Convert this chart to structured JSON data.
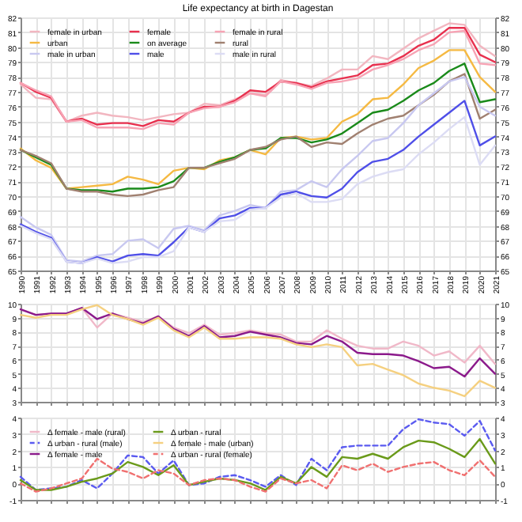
{
  "chart_data": [
    {
      "type": "line",
      "title": "Life expectancy at birth in Dagestan",
      "x": [
        1990,
        1991,
        1992,
        1993,
        1994,
        1995,
        1996,
        1997,
        1998,
        1999,
        2000,
        2001,
        2002,
        2003,
        2004,
        2005,
        2006,
        2007,
        2008,
        2009,
        2010,
        2011,
        2012,
        2013,
        2014,
        2015,
        2016,
        2017,
        2018,
        2019,
        2020,
        2021
      ],
      "xlim": [
        1990,
        2021
      ],
      "xticks": [
        1990,
        1991,
        1992,
        1993,
        1994,
        1995,
        1996,
        1997,
        1998,
        1999,
        2000,
        2001,
        2002,
        2003,
        2004,
        2005,
        2006,
        2007,
        2008,
        2009,
        2010,
        2011,
        2012,
        2013,
        2014,
        2015,
        2016,
        2017,
        2018,
        2019,
        2020,
        2021
      ],
      "ylim": [
        65,
        82
      ],
      "yticks": [
        65,
        66,
        67,
        68,
        69,
        70,
        71,
        72,
        73,
        74,
        75,
        76,
        77,
        78,
        79,
        80,
        81,
        82
      ],
      "y2lim": [
        65,
        82
      ],
      "y2ticks": [
        65,
        66,
        67,
        68,
        69,
        70,
        71,
        72,
        73,
        74,
        75,
        76,
        77,
        78,
        79,
        80,
        81,
        82
      ],
      "grid": true,
      "legend": "top left",
      "series": [
        {
          "name": "female in urban",
          "color": "#f2b6c0",
          "values": [
            77.5,
            76.6,
            76.5,
            75.0,
            75.4,
            75.6,
            75.4,
            75.3,
            75.1,
            75.3,
            75.5,
            75.6,
            76.2,
            76.1,
            76.5,
            76.9,
            76.8,
            77.8,
            77.6,
            77.4,
            77.9,
            78.5,
            78.5,
            79.4,
            79.2,
            79.9,
            80.6,
            81.1,
            81.6,
            81.5,
            80.1,
            79.4
          ]
        },
        {
          "name": "female",
          "color": "#e8304e",
          "values": [
            77.6,
            77.0,
            76.6,
            75.0,
            75.2,
            74.8,
            74.9,
            74.9,
            74.7,
            75.1,
            75.0,
            75.6,
            76.0,
            76.0,
            76.4,
            77.1,
            77.0,
            77.7,
            77.6,
            77.3,
            77.7,
            77.9,
            78.1,
            78.8,
            78.9,
            79.4,
            80.1,
            80.5,
            81.3,
            81.3,
            79.5,
            79.0
          ]
        },
        {
          "name": "female in rural",
          "color": "#f7a3b4",
          "values": [
            77.6,
            77.1,
            76.7,
            75.0,
            75.1,
            74.6,
            74.6,
            74.6,
            74.5,
            74.9,
            74.8,
            75.6,
            75.9,
            76.0,
            76.3,
            76.9,
            76.7,
            77.7,
            77.5,
            77.2,
            77.6,
            77.7,
            77.9,
            78.5,
            78.8,
            79.2,
            79.8,
            80.2,
            81.0,
            81.1,
            78.9,
            78.8
          ]
        },
        {
          "name": "urban",
          "color": "#f5b942",
          "values": [
            73.2,
            72.4,
            71.9,
            70.5,
            70.6,
            70.7,
            70.8,
            71.3,
            71.1,
            70.8,
            71.7,
            71.9,
            71.8,
            72.4,
            72.6,
            73.1,
            72.8,
            73.9,
            74.0,
            73.8,
            73.9,
            75.0,
            75.5,
            76.5,
            76.6,
            77.5,
            78.6,
            79.1,
            79.8,
            79.8,
            78.0,
            77.0
          ]
        },
        {
          "name": "on average",
          "color": "#1a8a1a",
          "values": [
            73.1,
            72.6,
            72.1,
            70.5,
            70.4,
            70.4,
            70.3,
            70.5,
            70.5,
            70.6,
            71.0,
            71.9,
            71.9,
            72.3,
            72.6,
            73.1,
            73.2,
            73.9,
            73.9,
            73.6,
            73.8,
            74.2,
            74.9,
            75.6,
            75.8,
            76.4,
            77.1,
            77.6,
            78.4,
            78.9,
            76.3,
            76.5
          ]
        },
        {
          "name": "rural",
          "color": "#a08070",
          "values": [
            73.1,
            72.7,
            72.2,
            70.5,
            70.3,
            70.3,
            70.1,
            70.0,
            70.1,
            70.4,
            70.6,
            71.9,
            71.9,
            72.2,
            72.5,
            73.1,
            73.3,
            73.8,
            74.0,
            73.3,
            73.6,
            73.5,
            74.2,
            74.8,
            75.2,
            75.4,
            76.1,
            76.8,
            77.7,
            78.2,
            75.2,
            75.8
          ]
        },
        {
          "name": "male in urban",
          "color": "#c8c8f0",
          "values": [
            68.6,
            67.9,
            67.4,
            65.7,
            65.6,
            66.0,
            66.1,
            67.0,
            67.1,
            66.5,
            67.8,
            68.0,
            67.7,
            68.7,
            69.0,
            69.4,
            69.2,
            70.3,
            70.4,
            71.0,
            70.6,
            71.8,
            72.7,
            73.7,
            73.9,
            74.9,
            76.1,
            76.9,
            77.7,
            78.0,
            76.0,
            75.4
          ]
        },
        {
          "name": "male",
          "color": "#4f4fe8",
          "values": [
            68.1,
            67.6,
            67.2,
            65.6,
            65.5,
            65.9,
            65.6,
            66.0,
            66.1,
            66.0,
            66.9,
            67.9,
            67.6,
            68.5,
            68.7,
            69.2,
            69.2,
            70.1,
            70.3,
            70.0,
            69.9,
            70.5,
            71.6,
            72.3,
            72.5,
            73.1,
            74.0,
            74.8,
            75.6,
            76.4,
            73.4,
            74.0
          ]
        },
        {
          "name": "male in rural",
          "color": "#dcdcf4",
          "values": [
            68.0,
            67.5,
            67.1,
            65.6,
            65.5,
            65.8,
            65.5,
            65.6,
            65.9,
            65.9,
            66.3,
            67.9,
            67.6,
            68.3,
            68.4,
            69.1,
            69.2,
            69.9,
            70.2,
            69.6,
            69.6,
            69.8,
            70.8,
            71.3,
            71.6,
            71.8,
            72.8,
            73.6,
            74.5,
            75.3,
            72.1,
            73.4
          ]
        }
      ]
    },
    {
      "type": "line",
      "x": [
        1990,
        1991,
        1992,
        1993,
        1994,
        1995,
        1996,
        1997,
        1998,
        1999,
        2000,
        2001,
        2002,
        2003,
        2004,
        2005,
        2006,
        2007,
        2008,
        2009,
        2010,
        2011,
        2012,
        2013,
        2014,
        2015,
        2016,
        2017,
        2018,
        2019,
        2020,
        2021
      ],
      "xlim": [
        1990,
        2021
      ],
      "xticks": [
        1990,
        1991,
        1992,
        1993,
        1994,
        1995,
        1996,
        1997,
        1998,
        1999,
        2000,
        2001,
        2002,
        2003,
        2004,
        2005,
        2006,
        2007,
        2008,
        2009,
        2010,
        2011,
        2012,
        2013,
        2014,
        2015,
        2016,
        2017,
        2018,
        2019,
        2020,
        2021
      ],
      "ylim": [
        3,
        10
      ],
      "yticks": [
        3,
        4,
        5,
        6,
        7,
        8,
        9,
        10
      ],
      "y2lim": [
        3,
        10
      ],
      "y2ticks": [
        3,
        4,
        5,
        6,
        7,
        8,
        9,
        10
      ],
      "grid": true,
      "tick_labels": "y",
      "legend": "bottom left",
      "series": [
        {
          "name": "Δ female - male (rural)",
          "color": "#f0b8c8",
          "values": [
            9.6,
            9.2,
            9.3,
            9.3,
            9.7,
            8.3,
            9.3,
            9.0,
            8.7,
            9.1,
            8.3,
            7.9,
            8.5,
            7.8,
            7.9,
            8.1,
            7.9,
            7.8,
            7.3,
            7.3,
            8.1,
            7.5,
            7.0,
            6.8,
            6.8,
            7.3,
            7.0,
            6.3,
            6.6,
            5.8,
            7.0,
            5.7
          ]
        },
        {
          "name": "Δ female - male",
          "color": "#8b1a8b",
          "values": [
            9.6,
            9.2,
            9.3,
            9.3,
            9.7,
            8.9,
            9.3,
            8.9,
            8.6,
            9.1,
            8.2,
            7.7,
            8.4,
            7.6,
            7.7,
            8.0,
            7.8,
            7.6,
            7.2,
            7.1,
            7.7,
            7.3,
            6.5,
            6.4,
            6.4,
            6.3,
            5.9,
            5.4,
            5.5,
            4.8,
            6.1,
            5.0
          ]
        },
        {
          "name": "Δ female - male (urban)",
          "color": "#f5d080",
          "values": [
            9.2,
            9.0,
            9.2,
            9.2,
            9.6,
            9.9,
            9.2,
            8.9,
            8.5,
            9.0,
            8.1,
            7.6,
            8.3,
            7.5,
            7.5,
            7.6,
            7.6,
            7.5,
            7.1,
            6.9,
            7.1,
            6.9,
            5.6,
            5.7,
            5.3,
            4.9,
            4.3,
            4.0,
            3.8,
            3.4,
            4.5,
            4.0
          ]
        }
      ]
    },
    {
      "type": "line",
      "x": [
        1990,
        1991,
        1992,
        1993,
        1994,
        1995,
        1996,
        1997,
        1998,
        1999,
        2000,
        2001,
        2002,
        2003,
        2004,
        2005,
        2006,
        2007,
        2008,
        2009,
        2010,
        2011,
        2012,
        2013,
        2014,
        2015,
        2016,
        2017,
        2018,
        2019,
        2020,
        2021
      ],
      "xlim": [
        1990,
        2021
      ],
      "xticks": [
        1990,
        1991,
        1992,
        1993,
        1994,
        1995,
        1996,
        1997,
        1998,
        1999,
        2000,
        2001,
        2002,
        2003,
        2004,
        2005,
        2006,
        2007,
        2008,
        2009,
        2010,
        2011,
        2012,
        2013,
        2014,
        2015,
        2016,
        2017,
        2018,
        2019,
        2020,
        2021
      ],
      "ylim": [
        -1,
        4
      ],
      "yticks": [
        -1,
        0,
        1,
        2,
        3,
        4
      ],
      "y2lim": [
        -1,
        4
      ],
      "y2ticks": [
        -1,
        0,
        1,
        2,
        3,
        4
      ],
      "grid": true,
      "tick_labels": "y",
      "legend": "top left",
      "series": [
        {
          "name": "Δ urban - rural (male)",
          "color": "#5a5af0",
          "line_style": "dashed",
          "values": [
            0.4,
            -0.4,
            -0.3,
            -0.2,
            0.2,
            -0.3,
            0.6,
            1.7,
            1.6,
            0.6,
            1.4,
            -0.1,
            0.0,
            0.4,
            0.5,
            0.2,
            -0.2,
            0.5,
            -0.1,
            1.5,
            0.8,
            2.2,
            2.3,
            2.3,
            2.3,
            3.3,
            3.9,
            3.7,
            3.6,
            2.9,
            3.8,
            2.0
          ]
        },
        {
          "name": "Δ urban - rural",
          "color": "#6a9a1a",
          "values": [
            0.2,
            -0.4,
            -0.4,
            -0.2,
            0.1,
            0.3,
            0.6,
            1.3,
            1.0,
            0.5,
            1.1,
            -0.1,
            0.1,
            0.3,
            0.2,
            0.0,
            -0.4,
            0.4,
            0.0,
            1.0,
            0.4,
            1.6,
            1.5,
            1.8,
            1.5,
            2.2,
            2.6,
            2.5,
            2.1,
            1.6,
            2.7,
            1.2
          ]
        },
        {
          "name": "Δ urban - rural (female)",
          "color": "#f07070",
          "line_style": "dashed",
          "values": [
            0.0,
            -0.5,
            -0.3,
            0.0,
            0.3,
            1.5,
            0.9,
            0.7,
            0.3,
            0.8,
            0.6,
            -0.1,
            0.2,
            0.3,
            0.2,
            -0.2,
            -0.5,
            0.3,
            0.0,
            0.2,
            -0.3,
            1.1,
            0.8,
            1.2,
            0.7,
            1.0,
            1.2,
            1.3,
            0.8,
            0.5,
            1.4,
            0.4
          ]
        }
      ]
    }
  ]
}
